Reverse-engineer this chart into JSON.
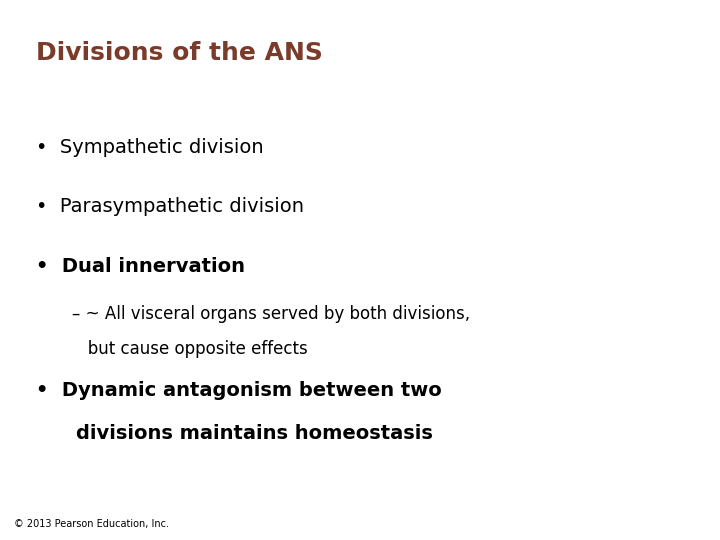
{
  "title": "Divisions of the ANS",
  "title_color": "#7B3B2A",
  "title_fontsize": 18,
  "background_color": "#FFFFFF",
  "bullet1": "Sympathetic division",
  "bullet2": "Parasympathetic division",
  "bullet3": "Dual innervation",
  "sub_bullet_line1": "– ~ All visceral organs served by both divisions,",
  "sub_bullet_line2": "   but cause opposite effects",
  "bullet4_line1": "Dynamic antagonism between two",
  "bullet4_line2": "divisions maintains homeostasis",
  "bullet_color": "#000000",
  "bullet_fontsize": 14,
  "sub_bullet_fontsize": 12,
  "copyright": "© 2013 Pearson Education, Inc.",
  "copyright_fontsize": 7,
  "copyright_color": "#000000"
}
